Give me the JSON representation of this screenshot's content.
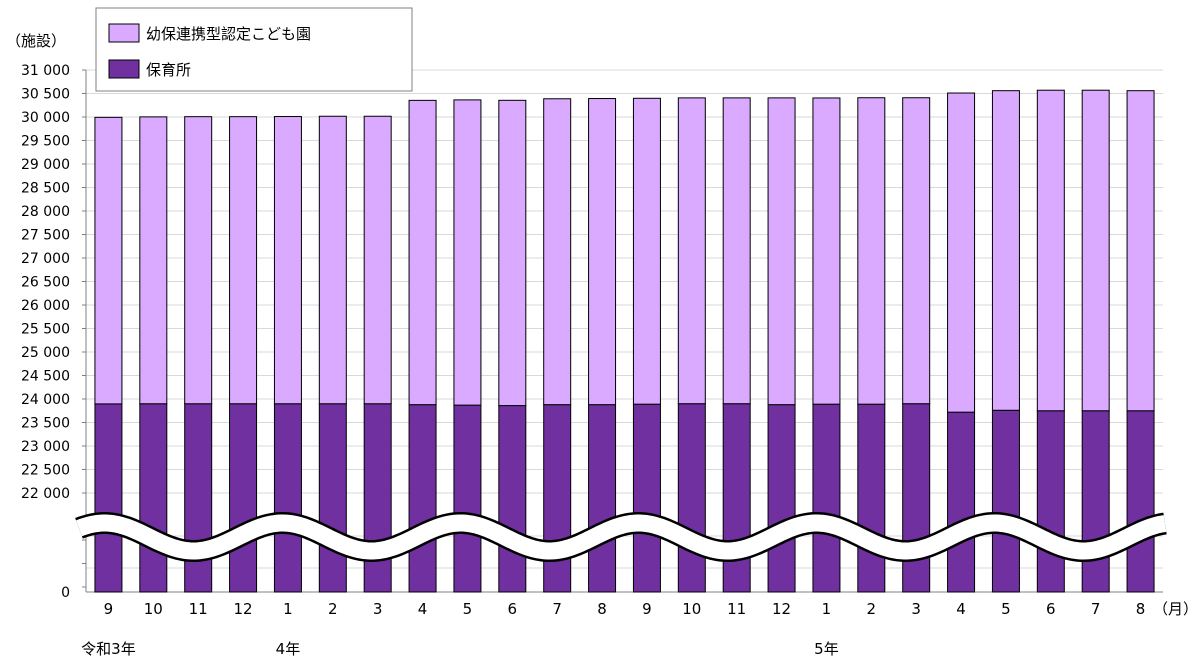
{
  "chart_data": {
    "type": "bar",
    "stacked": true,
    "axis_break": true,
    "y_unit_label": "（施設）",
    "x_unit_label": "（月）",
    "categories": [
      "9",
      "10",
      "11",
      "12",
      "1",
      "2",
      "3",
      "4",
      "5",
      "6",
      "7",
      "8",
      "9",
      "10",
      "11",
      "12",
      "1",
      "2",
      "3",
      "4",
      "5",
      "6",
      "7",
      "8"
    ],
    "year_labels": [
      {
        "text": "令和3年",
        "category_index": 0
      },
      {
        "text": "4年",
        "category_index": 4
      },
      {
        "text": "5年",
        "category_index": 16
      }
    ],
    "series": [
      {
        "name": "保育所",
        "color": "#7030a0",
        "values": [
          23896,
          23899,
          23899,
          23899,
          23899,
          23899,
          23899,
          23880,
          23870,
          23860,
          23880,
          23880,
          23890,
          23900,
          23900,
          23880,
          23890,
          23890,
          23900,
          23720,
          23760,
          23750,
          23750,
          23750
        ]
      },
      {
        "name": "幼保連携型認定こども園",
        "color": "#d9aaff",
        "values": [
          6097,
          6104,
          6108,
          6108,
          6111,
          6117,
          6117,
          6474,
          6494,
          6495,
          6508,
          6513,
          6508,
          6507,
          6507,
          6527,
          6515,
          6520,
          6510,
          6790,
          6800,
          6820,
          6820,
          6810
        ]
      }
    ],
    "totals": [
      29993,
      30003,
      30007,
      30007,
      30010,
      30016,
      30016,
      30354,
      30364,
      30355,
      30388,
      30393,
      30398,
      30407,
      30407,
      30407,
      30405,
      30410,
      30410,
      30510,
      30560,
      30570,
      30570,
      30560
    ],
    "y_ticks": [
      "0",
      "22 000",
      "22 500",
      "23 000",
      "23 500",
      "24 000",
      "24 500",
      "25 000",
      "25 500",
      "26 000",
      "26 500",
      "27 000",
      "27 500",
      "28 000",
      "28 500",
      "29 000",
      "29 500",
      "30 000",
      "30 500",
      "31 000"
    ],
    "ylim": [
      22000,
      31000
    ],
    "legend_position": "top-left",
    "grid": true
  }
}
